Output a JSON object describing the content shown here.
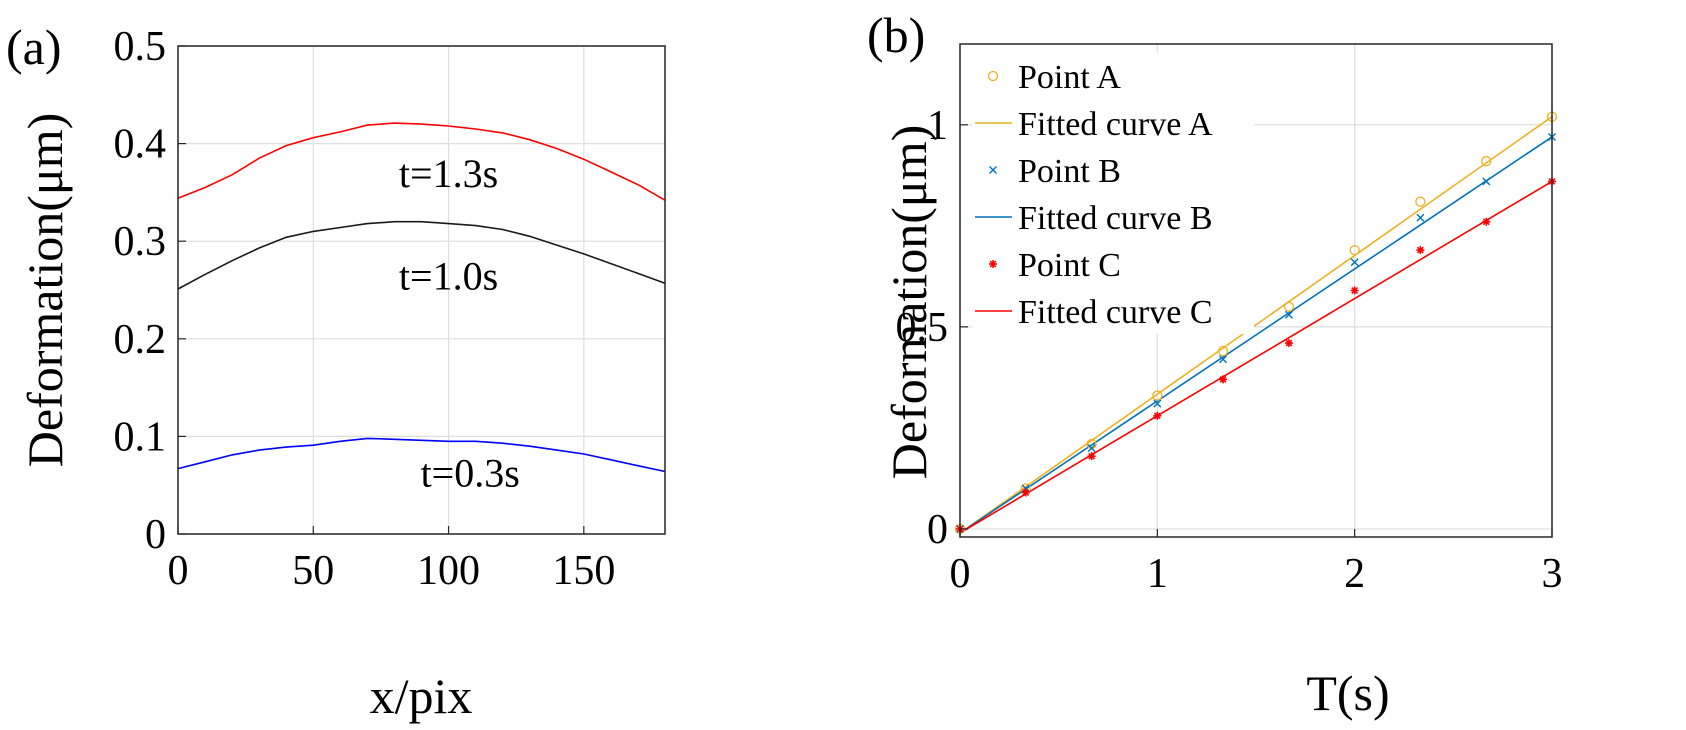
{
  "chart_data": [
    {
      "type": "line",
      "panel_label": "(a)",
      "xlabel": "x/pix",
      "ylabel": "Deformation(μm)",
      "xlim": [
        0,
        180
      ],
      "ylim": [
        0,
        0.5
      ],
      "xticks": [
        0,
        50,
        100,
        150
      ],
      "xtick_labels": [
        "0",
        "50",
        "100",
        "150"
      ],
      "yticks": [
        0,
        0.1,
        0.2,
        0.3,
        0.4,
        0.5
      ],
      "ytick_labels": [
        "0",
        "0.1",
        "0.2",
        "0.3",
        "0.4",
        "0.5"
      ],
      "grid": true,
      "series": [
        {
          "annotation": "t=1.3s",
          "annotation_at": [
            100,
            0.37
          ],
          "color": "#ff0000",
          "x": [
            0,
            10,
            20,
            30,
            40,
            50,
            60,
            70,
            80,
            90,
            100,
            110,
            120,
            130,
            140,
            150,
            160,
            170,
            180
          ],
          "y": [
            0.344,
            0.355,
            0.368,
            0.385,
            0.398,
            0.406,
            0.412,
            0.419,
            0.421,
            0.42,
            0.418,
            0.415,
            0.411,
            0.404,
            0.395,
            0.384,
            0.371,
            0.358,
            0.342
          ]
        },
        {
          "annotation": "t=1.0s",
          "annotation_at": [
            100,
            0.265
          ],
          "color": "#1a1a1a",
          "x": [
            0,
            10,
            20,
            30,
            40,
            50,
            60,
            70,
            80,
            90,
            100,
            110,
            120,
            130,
            140,
            150,
            160,
            170,
            180
          ],
          "y": [
            0.251,
            0.266,
            0.28,
            0.293,
            0.304,
            0.31,
            0.314,
            0.318,
            0.32,
            0.32,
            0.318,
            0.316,
            0.312,
            0.305,
            0.296,
            0.287,
            0.277,
            0.267,
            0.257
          ]
        },
        {
          "annotation": "t=0.3s",
          "annotation_at": [
            108,
            0.063
          ],
          "color": "#0000ff",
          "x": [
            0,
            10,
            20,
            30,
            40,
            50,
            60,
            70,
            80,
            90,
            100,
            110,
            120,
            130,
            140,
            150,
            160,
            170,
            180
          ],
          "y": [
            0.067,
            0.074,
            0.081,
            0.086,
            0.089,
            0.091,
            0.095,
            0.098,
            0.097,
            0.096,
            0.095,
            0.095,
            0.093,
            0.09,
            0.086,
            0.082,
            0.076,
            0.07,
            0.064
          ]
        }
      ]
    },
    {
      "type": "scatter",
      "panel_label": "(b)",
      "xlabel": "T(s)",
      "ylabel": "Deformation(μm)",
      "xlim": [
        0,
        3
      ],
      "ylim": [
        -0.02,
        1.2
      ],
      "xticks": [
        0,
        1,
        2,
        3
      ],
      "xtick_labels": [
        "0",
        "1",
        "2",
        "3"
      ],
      "yticks": [
        0,
        0.5,
        1
      ],
      "ytick_labels": [
        "0",
        "0.5",
        "1"
      ],
      "grid": true,
      "legend_position": "top-left",
      "series": [
        {
          "name": "Point A",
          "kind": "points",
          "marker": "circle",
          "color": "#edb120",
          "x": [
            0,
            0.333,
            0.667,
            1.0,
            1.333,
            1.667,
            2.0,
            2.333,
            2.667,
            3.0
          ],
          "y": [
            0.0,
            0.1,
            0.21,
            0.33,
            0.44,
            0.55,
            0.69,
            0.81,
            0.91,
            1.02
          ]
        },
        {
          "name": "Fitted curve A",
          "kind": "line",
          "color": "#edb120",
          "x": [
            0,
            3
          ],
          "y": [
            -0.01,
            1.02
          ]
        },
        {
          "name": "Point B",
          "kind": "points",
          "marker": "x",
          "color": "#0072bd",
          "x": [
            0,
            0.333,
            0.667,
            1.0,
            1.333,
            1.667,
            2.0,
            2.333,
            2.667,
            3.0
          ],
          "y": [
            0.0,
            0.1,
            0.2,
            0.31,
            0.42,
            0.53,
            0.66,
            0.77,
            0.86,
            0.97
          ]
        },
        {
          "name": "Fitted curve B",
          "kind": "line",
          "color": "#0072bd",
          "x": [
            0,
            3
          ],
          "y": [
            -0.01,
            0.97
          ]
        },
        {
          "name": "Point C",
          "kind": "points",
          "marker": "asterisk",
          "color": "#ff0000",
          "x": [
            0,
            0.333,
            0.667,
            1.0,
            1.333,
            1.667,
            2.0,
            2.333,
            2.667,
            3.0
          ],
          "y": [
            0.0,
            0.09,
            0.18,
            0.28,
            0.37,
            0.46,
            0.59,
            0.69,
            0.76,
            0.86
          ]
        },
        {
          "name": "Fitted curve C",
          "kind": "line",
          "color": "#ff0000",
          "x": [
            0,
            3
          ],
          "y": [
            -0.01,
            0.86
          ]
        }
      ]
    }
  ]
}
